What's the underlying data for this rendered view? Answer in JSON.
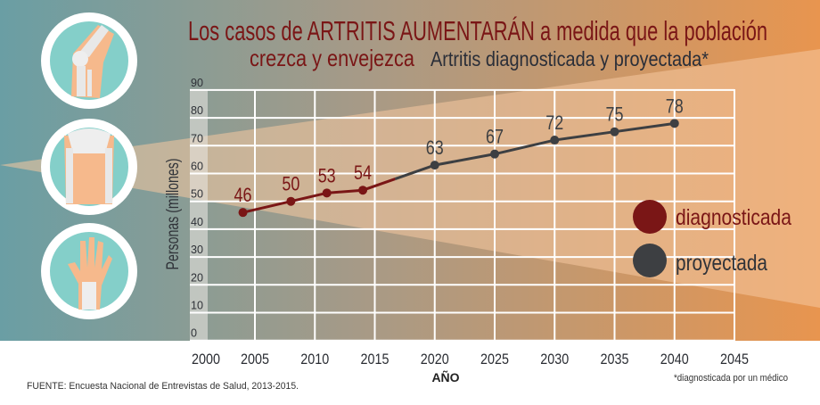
{
  "title": {
    "line1": "Los casos de ARTRITIS AUMENTARÁN a medida que la población",
    "line2_a": "crezca y envejezca",
    "line2_b": "Artritis diagnosticada y proyectada*"
  },
  "colors": {
    "diagnosed": "#7a1616",
    "projected": "#3d3f42",
    "title": "#7a1616",
    "icon_bg": "#84cfc9"
  },
  "icons": [
    "knee-icon",
    "hip-icon",
    "hand-icon"
  ],
  "chart_data": {
    "type": "line",
    "xlabel": "AÑO",
    "ylabel": "Personas (millones)",
    "ylim": [
      0,
      90
    ],
    "xlim": [
      2000,
      2045
    ],
    "yticks": [
      "0",
      "10",
      "20",
      "30",
      "40",
      "50",
      "60",
      "70",
      "80",
      "90"
    ],
    "xticks": [
      "2000",
      "2005",
      "2010",
      "2015",
      "2020",
      "2025",
      "2030",
      "2035",
      "2040",
      "2045"
    ],
    "grid": true,
    "legend_position": "right",
    "series": [
      {
        "name": "diagnosticada",
        "x": [
          2004,
          2008,
          2011,
          2014
        ],
        "values": [
          46,
          50,
          53,
          54
        ],
        "labels": [
          "46",
          "50",
          "53",
          "54"
        ]
      },
      {
        "name": "proyectada",
        "x": [
          2020,
          2025,
          2030,
          2035,
          2040
        ],
        "values": [
          63,
          67,
          72,
          75,
          78
        ],
        "labels": [
          "63",
          "67",
          "72",
          "75",
          "78"
        ]
      }
    ]
  },
  "source": "FUENTE: Encuesta Nacional de Entrevistas de Salud, 2013-2015.",
  "footnote": "*diagnosticada por un médico"
}
